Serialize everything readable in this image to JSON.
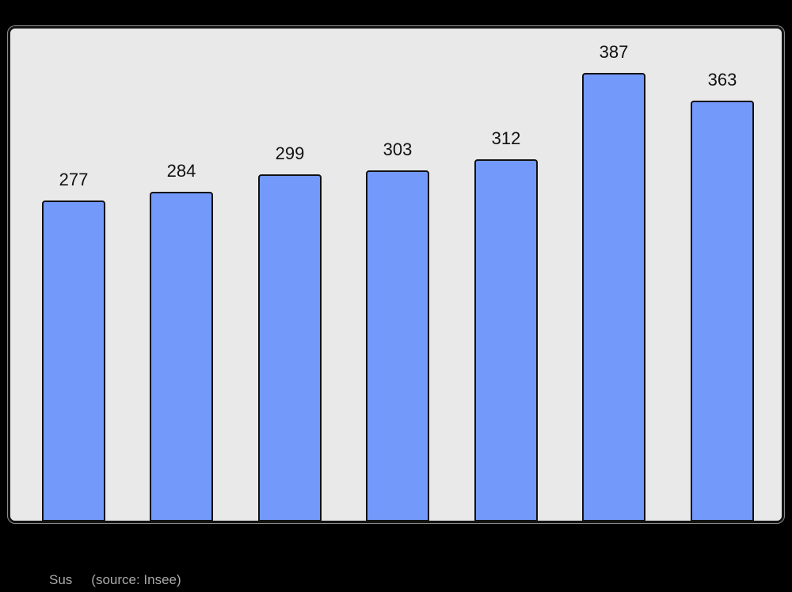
{
  "page": {
    "background_color": "#000000"
  },
  "chart_data": {
    "type": "bar",
    "title": "",
    "xlabel": "",
    "ylabel": "",
    "categories": [
      "",
      "",
      "",
      "",
      "",
      "",
      ""
    ],
    "values": [
      277,
      284,
      299,
      303,
      312,
      387,
      363
    ],
    "ylim": [
      0,
      427
    ],
    "grid": false,
    "legend": false,
    "bar_color": "#7399fa",
    "bar_border_color": "#111111",
    "value_label_color": "#111111",
    "panel_background": "#e9e9e9",
    "panel_border_color": "#141414"
  },
  "caption": {
    "place_label": "Sus",
    "source_label": "(source: Insee)",
    "color": "#a9a9a9"
  }
}
